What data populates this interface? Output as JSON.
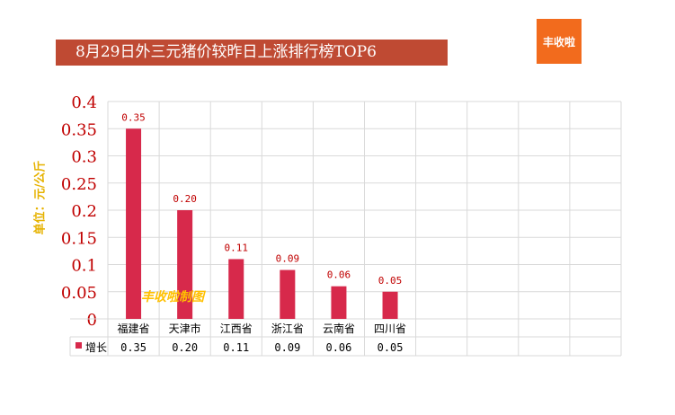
{
  "title": "8月29日外三元猪价较昨日上涨排行榜TOP6",
  "logo_text": "丰收啦",
  "y_unit_label": "单位：元/公斤",
  "watermark": "丰收啦制图",
  "colors": {
    "bar": "#d7294b",
    "title_bg": "#bf4a33",
    "logo_bg": "#f26b1d",
    "axis_text": "#c00000",
    "unit_text": "#e6b200",
    "watermark": "#ffc000"
  },
  "chart_data": {
    "type": "bar",
    "categories": [
      "福建省",
      "天津市",
      "江西省",
      "浙江省",
      "云南省",
      "四川省"
    ],
    "series": [
      {
        "name": "增长",
        "values": [
          0.35,
          0.2,
          0.11,
          0.09,
          0.06,
          0.05
        ]
      }
    ],
    "data_labels": [
      "0.35",
      "0.20",
      "0.11",
      "0.09",
      "0.06",
      "0.05"
    ],
    "y_ticks": [
      "0",
      "0.05",
      "0.1",
      "0.15",
      "0.2",
      "0.25",
      "0.3",
      "0.35",
      "0.4"
    ],
    "ylim": [
      0,
      0.4
    ],
    "grid": true,
    "legend": "data-table",
    "empty_columns": 4
  }
}
